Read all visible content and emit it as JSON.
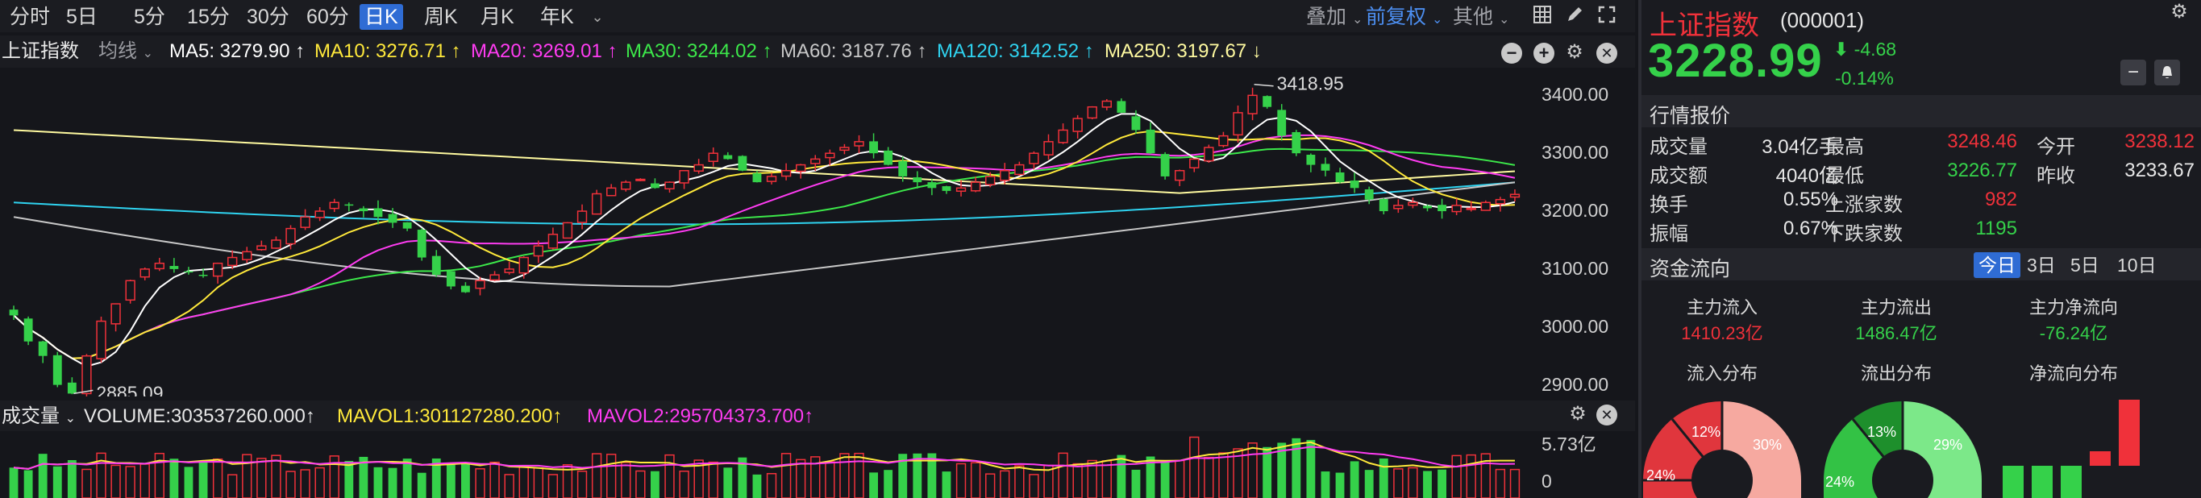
{
  "toolbar": {
    "periods": [
      "分时",
      "5日",
      "5分",
      "15分",
      "30分",
      "60分",
      "日K",
      "周K",
      "月K",
      "年K"
    ],
    "active_period": "日K",
    "overlay_label": "叠加",
    "adjust_label": "前复权",
    "other_label": "其他"
  },
  "ma_legend": {
    "index_name": "上证指数",
    "line_type": "均线",
    "items": [
      {
        "text": "MA5: 3279.90 ↑",
        "color": "#ffffff"
      },
      {
        "text": "MA10: 3276.71 ↑",
        "color": "#ffe93b"
      },
      {
        "text": "MA20: 3269.01 ↑",
        "color": "#ff3cf2"
      },
      {
        "text": "MA30: 3244.02 ↑",
        "color": "#3ce84a"
      },
      {
        "text": "MA60: 3187.76 ↑",
        "color": "#c8c8c8"
      },
      {
        "text": "MA120: 3142.52 ↑",
        "color": "#2fd3f0"
      },
      {
        "text": "MA250: 3197.67 ↓",
        "color": "#fffaa0"
      }
    ]
  },
  "chart_data": {
    "type": "candlestick",
    "y_ticks": [
      "3400.00",
      "3300.00",
      "3200.00",
      "3100.00",
      "3000.00",
      "2900.00"
    ],
    "ylim": [
      2880,
      3445
    ],
    "annotations": [
      {
        "text": "3418.95",
        "value": 3418.95
      },
      {
        "text": "2885.09",
        "value": 2885.09
      }
    ],
    "colors": {
      "up": "#f0313a",
      "down": "#35d14a"
    },
    "approx_closes": [
      3020,
      2975,
      2950,
      2900,
      2885,
      2950,
      3010,
      3040,
      3080,
      3100,
      3110,
      3100,
      3095,
      3090,
      3110,
      3120,
      3130,
      3140,
      3150,
      3170,
      3190,
      3200,
      3215,
      3210,
      3200,
      3190,
      3180,
      3170,
      3120,
      3090,
      3070,
      3060,
      3080,
      3090,
      3100,
      3120,
      3140,
      3160,
      3180,
      3200,
      3230,
      3240,
      3250,
      3255,
      3240,
      3250,
      3270,
      3280,
      3300,
      3290,
      3270,
      3250,
      3260,
      3270,
      3280,
      3290,
      3300,
      3310,
      3320,
      3300,
      3280,
      3260,
      3250,
      3240,
      3235,
      3240,
      3250,
      3260,
      3270,
      3280,
      3300,
      3320,
      3340,
      3360,
      3380,
      3390,
      3370,
      3340,
      3300,
      3260,
      3270,
      3290,
      3310,
      3330,
      3370,
      3400,
      3380,
      3330,
      3300,
      3280,
      3270,
      3250,
      3240,
      3220,
      3200,
      3210,
      3215,
      3205,
      3200,
      3210,
      3205,
      3215,
      3220,
      3228.99
    ]
  },
  "volume": {
    "label": "成交量",
    "volume_text": "VOLUME:303537260.000↑",
    "mavol1_text": "MAVOL1:301127280.200↑",
    "mavol2_text": "MAVOL2:295704373.700↑",
    "axis_top": "5.73亿",
    "axis_bottom": "0"
  },
  "info": {
    "name": "上证指数",
    "code": "(000001)",
    "price": "3228.99",
    "change": "-4.68",
    "change_pct": "-0.14%",
    "quote_header": "行情报价",
    "quotes": [
      {
        "label": "成交量",
        "value": "3.04亿手",
        "label2": "最高",
        "value2": "3248.46",
        "label3": "今开",
        "value3": "3238.12"
      },
      {
        "label": "成交额",
        "value": "4040亿",
        "label2": "最低",
        "value2": "3226.77",
        "label3": "昨收",
        "value3": "3233.67"
      },
      {
        "label": "换手",
        "value": "0.55%",
        "label2": "上涨家数",
        "value2": "982"
      },
      {
        "label": "振幅",
        "value": "0.67%",
        "label2": "下跌家数",
        "value2": "1195"
      }
    ],
    "flow_header": "资金流向",
    "flow_tabs": [
      "今日",
      "3日",
      "5日",
      "10日"
    ],
    "flow_active": "今日",
    "flows": [
      {
        "label": "主力流入",
        "value": "1410.23亿"
      },
      {
        "label": "主力流出",
        "value": "1486.47亿"
      },
      {
        "label": "主力净流向",
        "value": "-76.24亿"
      }
    ],
    "dist_labels": [
      "流入分布",
      "流出分布",
      "净流向分布"
    ],
    "inflow_pie": [
      {
        "label": "12%",
        "color": "#e0363d"
      },
      {
        "label": "24%",
        "color": "#e0363d"
      },
      {
        "label": "30%",
        "color": "#f6a9a0"
      }
    ],
    "outflow_pie": [
      {
        "label": "13%",
        "color": "#1e8f2c"
      },
      {
        "label": "24%",
        "color": "#33c245"
      },
      {
        "label": "29%",
        "color": "#7ce889"
      }
    ]
  }
}
